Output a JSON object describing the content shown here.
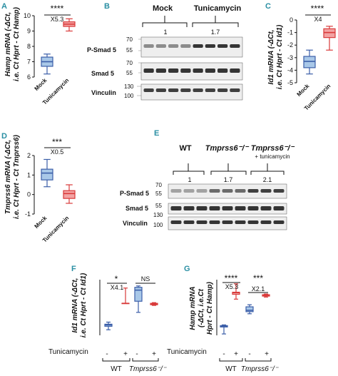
{
  "panels": {
    "A": {
      "letter": "A",
      "ylabel_l1": "Hamp mRNA (-ΔCt,",
      "ylabel_l2": "i.e. Ct Hprt - Ct Hamp)",
      "ticks": [
        "10",
        "9",
        "8",
        "7",
        "6"
      ],
      "xlabels": [
        "Mock",
        "Tunicamycin"
      ],
      "sig": "****",
      "fold": "X5.3"
    },
    "B": {
      "letter": "B",
      "groups": [
        "Mock",
        "Tunicamycin"
      ],
      "ratios": [
        "1",
        "1.7"
      ],
      "rows": [
        "P-Smad 5",
        "Smad 5",
        "Vinculin"
      ],
      "mw": [
        "70",
        "55",
        "70",
        "55",
        "130",
        "100"
      ]
    },
    "C": {
      "letter": "C",
      "ylabel_l1": "Id1 mRNA (-ΔCt,",
      "ylabel_l2": "i.e. Ct Hprt - Ct Id1)",
      "ticks": [
        "0",
        "-1",
        "-2",
        "-3",
        "-4",
        "-5"
      ],
      "xlabels": [
        "Mock",
        "Tunicamycin"
      ],
      "sig": "****",
      "fold": "X4"
    },
    "D": {
      "letter": "D",
      "ylabel_l1": "Tmprss6 mRNA (-ΔCt,",
      "ylabel_l2": "i.e. Ct Hprt - Ct Tmprss6)",
      "ticks": [
        "2",
        "1",
        "0",
        "-1"
      ],
      "xlabels": [
        "Mock",
        "Tunicamycin"
      ],
      "sig": "***",
      "fold": "X0.5"
    },
    "E": {
      "letter": "E",
      "groups": [
        "WT",
        "Tmprss6⁻/⁻",
        "Tmprss6⁻/⁻"
      ],
      "group3_sub": "+ tunicamycin",
      "ratios": [
        "1",
        "1.7",
        "2.1"
      ],
      "rows": [
        "P-Smad 5",
        "Smad 5",
        "Vinculin"
      ],
      "mw": [
        "70",
        "55",
        "55",
        "130",
        "100"
      ]
    },
    "F": {
      "letter": "F",
      "ylabel_l1": "Id1 mRNA (-ΔCt,",
      "ylabel_l2": "i.e. Ct Hprt - Ct Id1)",
      "sig1": "*",
      "fold1": "X4.1",
      "sig2": "NS",
      "treat_label": "Tunicamycin",
      "signs": [
        "-",
        "+",
        "-",
        "+"
      ],
      "groups": [
        "WT",
        "Tmprss6⁻/⁻"
      ]
    },
    "G": {
      "letter": "G",
      "ylabel_l1": "Hamp mRNA",
      "ylabel_l2": "(-ΔCt, i.e.Ct",
      "ylabel_l3": "Hprt - Ct Hamp)",
      "sig1": "****",
      "fold1": "X5.3",
      "sig2": "***",
      "fold2": "X2.1",
      "treat_label": "Tunicamycin",
      "signs": [
        "-",
        "+",
        "-",
        "+"
      ],
      "groups": [
        "WT",
        "Tmprss6⁻/⁻"
      ]
    }
  },
  "colors": {
    "blue": "#3b5ea8",
    "red": "#d93a3a",
    "blue_fill": "#a9c8e8",
    "red_fill": "#f3a3a3",
    "letter": "#2a8fa3"
  },
  "chart_data": [
    {
      "panel": "A",
      "type": "box",
      "categories": [
        "Mock",
        "Tunicamycin"
      ],
      "ylim": [
        6,
        10
      ],
      "boxes": [
        {
          "name": "Mock",
          "min": 6.2,
          "q1": 6.7,
          "median": 7.0,
          "q3": 7.3,
          "max": 7.5
        },
        {
          "name": "Tunicamycin",
          "min": 9.0,
          "q1": 9.3,
          "median": 9.45,
          "q3": 9.6,
          "max": 9.8
        }
      ]
    },
    {
      "panel": "C",
      "type": "box",
      "categories": [
        "Mock",
        "Tunicamycin"
      ],
      "ylim": [
        -5,
        0
      ],
      "boxes": [
        {
          "name": "Mock",
          "min": -4.3,
          "q1": -3.8,
          "median": -3.3,
          "q3": -2.9,
          "max": -2.4
        },
        {
          "name": "Tunicamycin",
          "min": -2.4,
          "q1": -1.4,
          "median": -1.0,
          "q3": -0.7,
          "max": -0.5
        }
      ]
    },
    {
      "panel": "D",
      "type": "box",
      "categories": [
        "Mock",
        "Tunicamycin"
      ],
      "ylim": [
        -1,
        2
      ],
      "boxes": [
        {
          "name": "Mock",
          "min": 0.4,
          "q1": 0.75,
          "median": 1.1,
          "q3": 1.3,
          "max": 1.8
        },
        {
          "name": "Tunicamycin",
          "min": -0.45,
          "q1": -0.2,
          "median": 0.05,
          "q3": 0.2,
          "max": 0.5
        }
      ]
    },
    {
      "panel": "F",
      "type": "box",
      "ylim": [
        -4,
        0
      ],
      "boxes": [
        {
          "name": "WT -",
          "min": -3.6,
          "q1": -3.35,
          "median": -3.25,
          "q3": -3.2,
          "max": -3.05
        },
        {
          "name": "WT +",
          "min": -1.7,
          "q1": -1.7,
          "median": -1.7,
          "q3": -1.7,
          "max": -0.6
        },
        {
          "name": "Tmprss6 -",
          "min": -2.35,
          "q1": -1.55,
          "median": -0.75,
          "q3": -0.55,
          "max": -0.45
        },
        {
          "name": "Tmprss6 +",
          "min": -1.85,
          "q1": -1.8,
          "median": -1.75,
          "q3": -1.7,
          "max": -1.65
        }
      ]
    },
    {
      "panel": "G",
      "type": "box",
      "ylim": [
        6,
        10
      ],
      "boxes": [
        {
          "name": "WT -",
          "min": 6.1,
          "q1": 6.6,
          "median": 6.65,
          "q3": 6.7,
          "max": 6.75
        },
        {
          "name": "WT +",
          "min": 8.6,
          "q1": 8.95,
          "median": 9.05,
          "q3": 9.1,
          "max": 9.7
        },
        {
          "name": "Tmprss6 -",
          "min": 7.55,
          "q1": 7.7,
          "median": 7.8,
          "q3": 8.05,
          "max": 8.2
        },
        {
          "name": "Tmprss6 +",
          "min": 8.75,
          "q1": 8.82,
          "median": 8.88,
          "q3": 8.92,
          "max": 8.97
        }
      ]
    }
  ]
}
